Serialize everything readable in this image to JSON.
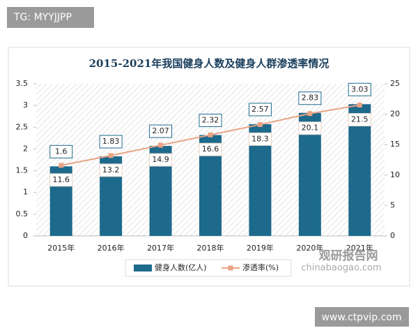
{
  "chart_data": {
    "type": "bar-line",
    "title": "2015-2021年我国健身人数及健身人群渗透率情况",
    "categories": [
      "2015年",
      "2016年",
      "2017年",
      "2018年",
      "2019年",
      "2020年",
      "2021年"
    ],
    "series": [
      {
        "name": "健身人数(亿人)",
        "color": "#1d6a8c",
        "type": "bar",
        "values": [
          1.6,
          1.83,
          2.07,
          2.32,
          2.57,
          2.83,
          3.03
        ]
      },
      {
        "name": "渗透率(%)",
        "color": "#e9a384",
        "type": "line",
        "axis": "y2",
        "values": [
          11.6,
          13.2,
          14.9,
          16.6,
          18.3,
          20.1,
          21.5
        ]
      }
    ],
    "ylim": [
      0,
      3.5
    ],
    "yticks": [
      0,
      0.5,
      1,
      1.5,
      2,
      2.5,
      3,
      3.5
    ],
    "y2lim": [
      0,
      25
    ],
    "y2ticks": [
      0,
      5,
      10,
      15,
      20,
      25
    ],
    "legend": "bottom"
  },
  "watermarks": {
    "top_left": "TG: MYYJJPP",
    "logo": "观研报告网",
    "logo_url": "chinabaogao.com",
    "bottom_right": "www.ctpvip.com"
  }
}
